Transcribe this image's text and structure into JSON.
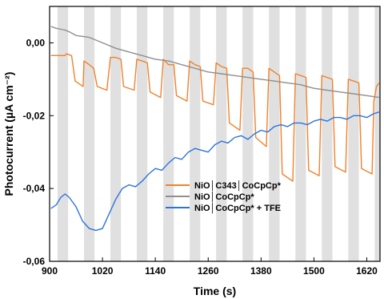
{
  "chart_data": {
    "type": "line",
    "xlabel": "Time (s)",
    "ylabel": "Photocurrent (µA cm⁻²)",
    "xlim": [
      900,
      1650
    ],
    "ylim": [
      -0.06,
      0.01
    ],
    "xticks": [
      900,
      1020,
      1140,
      1260,
      1380,
      1500,
      1620
    ],
    "yticks": [
      -0.06,
      -0.04,
      -0.02,
      0.0
    ],
    "ytick_labels": [
      "-0,06",
      "-0,04",
      "-0,02",
      "0,00"
    ],
    "light_on_bands": [
      [
        918,
        942
      ],
      [
        978,
        1002
      ],
      [
        1038,
        1062
      ],
      [
        1098,
        1122
      ],
      [
        1158,
        1182
      ],
      [
        1218,
        1242
      ],
      [
        1278,
        1302
      ],
      [
        1338,
        1362
      ],
      [
        1398,
        1422
      ],
      [
        1458,
        1482
      ],
      [
        1518,
        1542
      ],
      [
        1578,
        1602
      ],
      [
        1638,
        1650
      ]
    ],
    "legend_position": "center",
    "series": [
      {
        "name": "NiO│C343│CoCpCp*",
        "color": "#F0822C",
        "points": [
          [
            903,
            -0.0035
          ],
          [
            935,
            -0.0035
          ],
          [
            938,
            -0.003
          ],
          [
            950,
            -0.0035
          ],
          [
            958,
            -0.0105
          ],
          [
            976,
            -0.012
          ],
          [
            978,
            -0.005
          ],
          [
            990,
            -0.006
          ],
          [
            1000,
            -0.007
          ],
          [
            1008,
            -0.012
          ],
          [
            1030,
            -0.013
          ],
          [
            1038,
            -0.004
          ],
          [
            1050,
            -0.004
          ],
          [
            1062,
            -0.0045
          ],
          [
            1068,
            -0.012
          ],
          [
            1092,
            -0.013
          ],
          [
            1098,
            -0.0045
          ],
          [
            1110,
            -0.005
          ],
          [
            1122,
            -0.0055
          ],
          [
            1128,
            -0.0135
          ],
          [
            1152,
            -0.015
          ],
          [
            1158,
            -0.0045
          ],
          [
            1170,
            -0.006
          ],
          [
            1182,
            -0.006
          ],
          [
            1188,
            -0.0145
          ],
          [
            1212,
            -0.016
          ],
          [
            1218,
            -0.005
          ],
          [
            1230,
            -0.006
          ],
          [
            1242,
            -0.0065
          ],
          [
            1248,
            -0.016
          ],
          [
            1272,
            -0.017
          ],
          [
            1278,
            -0.0055
          ],
          [
            1290,
            -0.0065
          ],
          [
            1302,
            -0.007
          ],
          [
            1308,
            -0.022
          ],
          [
            1332,
            -0.024
          ],
          [
            1338,
            -0.007
          ],
          [
            1350,
            -0.007
          ],
          [
            1362,
            -0.008
          ],
          [
            1368,
            -0.026
          ],
          [
            1392,
            -0.0285
          ],
          [
            1398,
            -0.007
          ],
          [
            1410,
            -0.008
          ],
          [
            1422,
            -0.009
          ],
          [
            1428,
            -0.036
          ],
          [
            1452,
            -0.038
          ],
          [
            1458,
            -0.0085
          ],
          [
            1470,
            -0.009
          ],
          [
            1482,
            -0.0095
          ],
          [
            1488,
            -0.035
          ],
          [
            1512,
            -0.0365
          ],
          [
            1518,
            -0.009
          ],
          [
            1530,
            -0.0095
          ],
          [
            1542,
            -0.01
          ],
          [
            1548,
            -0.034
          ],
          [
            1572,
            -0.0355
          ],
          [
            1578,
            -0.01
          ],
          [
            1590,
            -0.0105
          ],
          [
            1602,
            -0.011
          ],
          [
            1608,
            -0.0345
          ],
          [
            1632,
            -0.036
          ],
          [
            1636,
            -0.016
          ],
          [
            1642,
            -0.012
          ],
          [
            1648,
            -0.011
          ]
        ]
      },
      {
        "name": "NiO│CoCpCp*",
        "color": "#8F8F8F",
        "points": [
          [
            903,
            0.0045
          ],
          [
            915,
            0.004
          ],
          [
            935,
            0.0035
          ],
          [
            945,
            0.003
          ],
          [
            960,
            0.002
          ],
          [
            990,
            0.0015
          ],
          [
            1020,
            0.0
          ],
          [
            1050,
            -0.0015
          ],
          [
            1080,
            -0.0025
          ],
          [
            1110,
            -0.0035
          ],
          [
            1140,
            -0.0045
          ],
          [
            1170,
            -0.005
          ],
          [
            1200,
            -0.006
          ],
          [
            1230,
            -0.007
          ],
          [
            1260,
            -0.008
          ],
          [
            1290,
            -0.0085
          ],
          [
            1320,
            -0.009
          ],
          [
            1350,
            -0.0095
          ],
          [
            1380,
            -0.01
          ],
          [
            1410,
            -0.0105
          ],
          [
            1440,
            -0.011
          ],
          [
            1470,
            -0.0115
          ],
          [
            1500,
            -0.0125
          ],
          [
            1530,
            -0.013
          ],
          [
            1560,
            -0.0135
          ],
          [
            1590,
            -0.014
          ],
          [
            1620,
            -0.0145
          ],
          [
            1648,
            -0.015
          ]
        ]
      },
      {
        "name": "NiO│CoCpCp* + TFE",
        "color": "#2B74E0",
        "points": [
          [
            903,
            -0.0455
          ],
          [
            915,
            -0.0445
          ],
          [
            925,
            -0.0425
          ],
          [
            935,
            -0.0415
          ],
          [
            945,
            -0.0425
          ],
          [
            960,
            -0.045
          ],
          [
            975,
            -0.049
          ],
          [
            990,
            -0.051
          ],
          [
            1005,
            -0.0515
          ],
          [
            1020,
            -0.051
          ],
          [
            1035,
            -0.047
          ],
          [
            1050,
            -0.043
          ],
          [
            1065,
            -0.04
          ],
          [
            1080,
            -0.039
          ],
          [
            1095,
            -0.0395
          ],
          [
            1110,
            -0.038
          ],
          [
            1125,
            -0.036
          ],
          [
            1140,
            -0.0345
          ],
          [
            1155,
            -0.035
          ],
          [
            1170,
            -0.033
          ],
          [
            1185,
            -0.0315
          ],
          [
            1200,
            -0.032
          ],
          [
            1215,
            -0.03
          ],
          [
            1230,
            -0.029
          ],
          [
            1245,
            -0.0295
          ],
          [
            1260,
            -0.03
          ],
          [
            1275,
            -0.028
          ],
          [
            1290,
            -0.027
          ],
          [
            1305,
            -0.0275
          ],
          [
            1320,
            -0.026
          ],
          [
            1335,
            -0.0255
          ],
          [
            1350,
            -0.0265
          ],
          [
            1365,
            -0.025
          ],
          [
            1380,
            -0.024
          ],
          [
            1395,
            -0.0245
          ],
          [
            1410,
            -0.023
          ],
          [
            1425,
            -0.0225
          ],
          [
            1440,
            -0.023
          ],
          [
            1455,
            -0.022
          ],
          [
            1470,
            -0.022
          ],
          [
            1485,
            -0.0225
          ],
          [
            1500,
            -0.0215
          ],
          [
            1515,
            -0.021
          ],
          [
            1530,
            -0.0215
          ],
          [
            1545,
            -0.0205
          ],
          [
            1560,
            -0.0205
          ],
          [
            1575,
            -0.021
          ],
          [
            1590,
            -0.02
          ],
          [
            1605,
            -0.02
          ],
          [
            1620,
            -0.0205
          ],
          [
            1635,
            -0.0195
          ],
          [
            1648,
            -0.019
          ]
        ]
      }
    ]
  }
}
